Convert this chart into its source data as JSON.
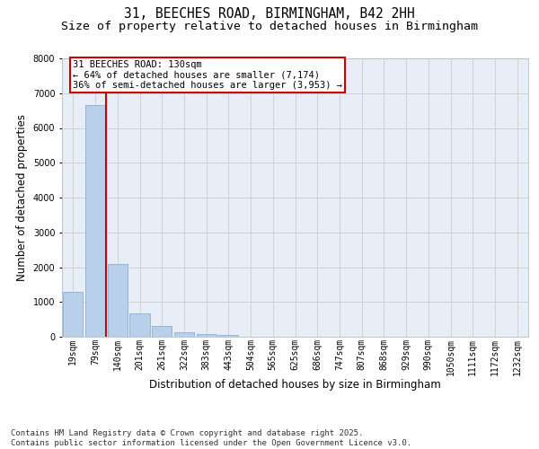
{
  "title_line1": "31, BEECHES ROAD, BIRMINGHAM, B42 2HH",
  "title_line2": "Size of property relative to detached houses in Birmingham",
  "xlabel": "Distribution of detached houses by size in Birmingham",
  "ylabel": "Number of detached properties",
  "categories": [
    "19sqm",
    "79sqm",
    "140sqm",
    "201sqm",
    "261sqm",
    "322sqm",
    "383sqm",
    "443sqm",
    "504sqm",
    "565sqm",
    "625sqm",
    "686sqm",
    "747sqm",
    "807sqm",
    "868sqm",
    "929sqm",
    "990sqm",
    "1050sqm",
    "1111sqm",
    "1172sqm",
    "1232sqm"
  ],
  "values": [
    1300,
    6650,
    2100,
    680,
    300,
    130,
    80,
    60,
    0,
    0,
    0,
    0,
    0,
    0,
    0,
    0,
    0,
    0,
    0,
    0,
    0
  ],
  "bar_color": "#b8d0ea",
  "bar_edge_color": "#8ab0d0",
  "bar_linewidth": 0.6,
  "vline_color": "#cc0000",
  "vline_linewidth": 1.5,
  "annotation_text": "31 BEECHES ROAD: 130sqm\n← 64% of detached houses are smaller (7,174)\n36% of semi-detached houses are larger (3,953) →",
  "annotation_box_color": "#cc0000",
  "annotation_text_color": "#000000",
  "annotation_bg_color": "#ffffff",
  "ylim": [
    0,
    8000
  ],
  "yticks": [
    0,
    1000,
    2000,
    3000,
    4000,
    5000,
    6000,
    7000,
    8000
  ],
  "grid_color": "#cccccc",
  "background_color": "#e8eef8",
  "footer_text": "Contains HM Land Registry data © Crown copyright and database right 2025.\nContains public sector information licensed under the Open Government Licence v3.0.",
  "title_fontsize": 10.5,
  "subtitle_fontsize": 9.5,
  "axis_label_fontsize": 8.5,
  "tick_fontsize": 7,
  "annotation_fontsize": 7.5,
  "footer_fontsize": 6.5
}
